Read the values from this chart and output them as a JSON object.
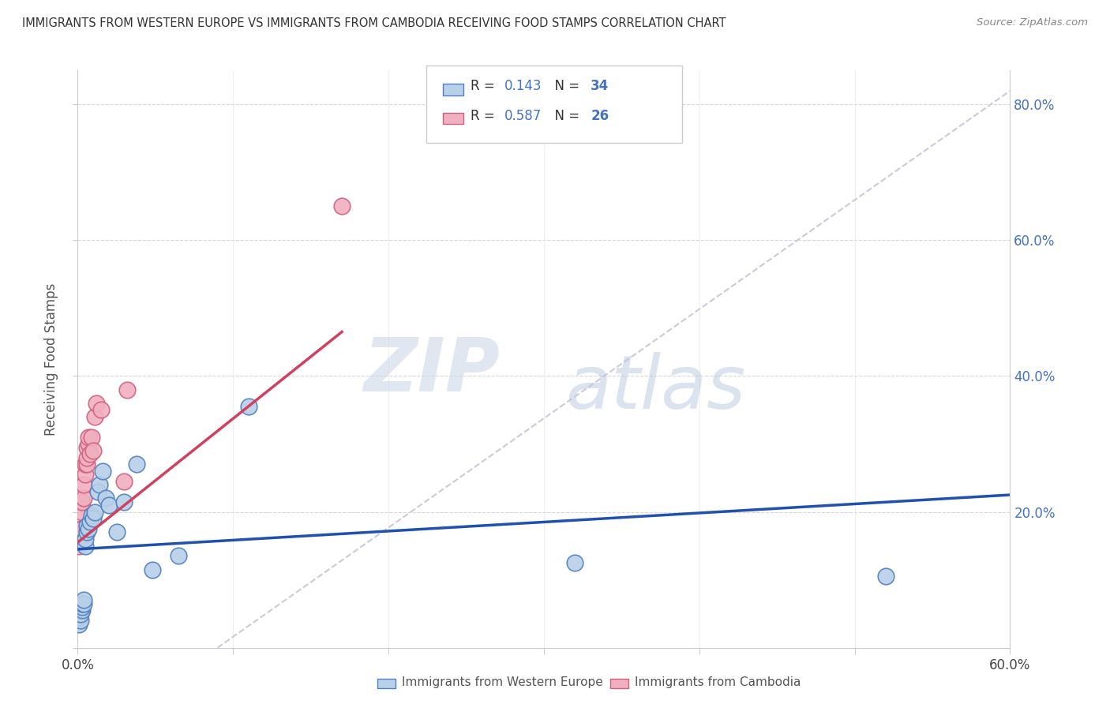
{
  "title": "IMMIGRANTS FROM WESTERN EUROPE VS IMMIGRANTS FROM CAMBODIA RECEIVING FOOD STAMPS CORRELATION CHART",
  "source": "Source: ZipAtlas.com",
  "ylabel": "Receiving Food Stamps",
  "legend_label1": "Immigrants from Western Europe",
  "legend_label2": "Immigrants from Cambodia",
  "R1": 0.143,
  "N1": 34,
  "R2": 0.587,
  "N2": 26,
  "xlim": [
    0.0,
    0.6
  ],
  "ylim": [
    0.0,
    0.85
  ],
  "color_blue_fill": "#b8d0e8",
  "color_pink_fill": "#f0b0c0",
  "color_blue_edge": "#5080c0",
  "color_pink_edge": "#d06080",
  "color_blue_line": "#2050b0",
  "color_pink_line": "#d04060",
  "color_diag_line": "#d0c8d8",
  "watermark_zip": "ZIP",
  "watermark_atlas": "atlas",
  "blue_x": [
    0.001,
    0.001,
    0.001,
    0.001,
    0.002,
    0.002,
    0.002,
    0.003,
    0.003,
    0.003,
    0.004,
    0.004,
    0.005,
    0.005,
    0.006,
    0.006,
    0.007,
    0.008,
    0.009,
    0.01,
    0.011,
    0.013,
    0.014,
    0.016,
    0.018,
    0.02,
    0.025,
    0.03,
    0.038,
    0.048,
    0.065,
    0.11,
    0.32,
    0.52
  ],
  "blue_y": [
    0.035,
    0.045,
    0.05,
    0.06,
    0.04,
    0.05,
    0.06,
    0.055,
    0.06,
    0.065,
    0.065,
    0.07,
    0.15,
    0.16,
    0.17,
    0.18,
    0.175,
    0.185,
    0.195,
    0.19,
    0.2,
    0.23,
    0.24,
    0.26,
    0.22,
    0.21,
    0.17,
    0.215,
    0.27,
    0.115,
    0.135,
    0.355,
    0.125,
    0.105
  ],
  "pink_x": [
    0.001,
    0.001,
    0.002,
    0.002,
    0.002,
    0.003,
    0.003,
    0.003,
    0.004,
    0.004,
    0.005,
    0.005,
    0.006,
    0.006,
    0.006,
    0.007,
    0.007,
    0.008,
    0.009,
    0.01,
    0.011,
    0.012,
    0.015,
    0.03,
    0.032,
    0.17
  ],
  "pink_y": [
    0.15,
    0.16,
    0.165,
    0.17,
    0.175,
    0.175,
    0.2,
    0.215,
    0.22,
    0.24,
    0.255,
    0.27,
    0.27,
    0.28,
    0.295,
    0.3,
    0.31,
    0.285,
    0.31,
    0.29,
    0.34,
    0.36,
    0.35,
    0.245,
    0.38,
    0.65
  ],
  "blue_line_x0": 0.0,
  "blue_line_y0": 0.145,
  "blue_line_x1": 0.6,
  "blue_line_y1": 0.225,
  "pink_line_x0": 0.0,
  "pink_line_y0": 0.155,
  "pink_line_x1": 0.17,
  "pink_line_y1": 0.465,
  "diag_line_x0": 0.09,
  "diag_line_y0": 0.0,
  "diag_line_x1": 0.6,
  "diag_line_y1": 0.82
}
